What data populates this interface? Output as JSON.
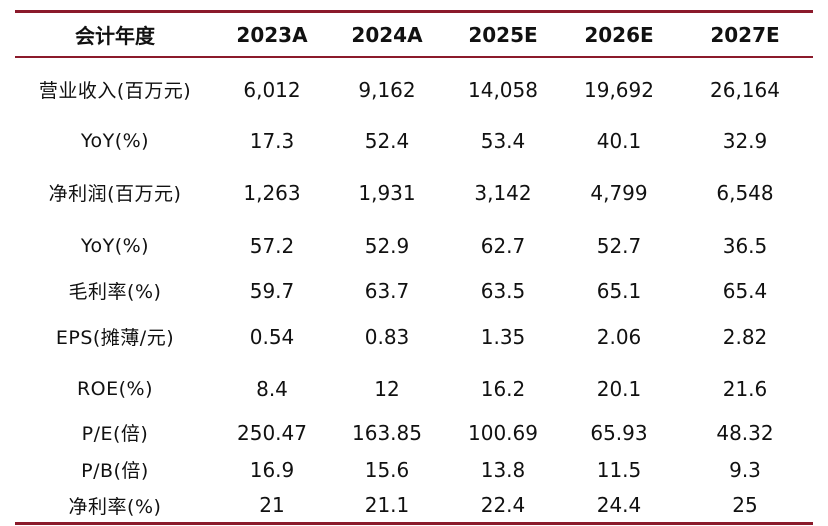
{
  "table": {
    "header": [
      "会计年度",
      "2023A",
      "2024A",
      "2025E",
      "2026E",
      "2027E"
    ],
    "rows": [
      [
        "营业收入(百万元)",
        "6,012",
        "9,162",
        "14,058",
        "19,692",
        "26,164"
      ],
      [
        "YoY(%)",
        "17.3",
        "52.4",
        "53.4",
        "40.1",
        "32.9"
      ],
      [
        "净利润(百万元)",
        "1,263",
        "1,931",
        "3,142",
        "4,799",
        "6,548"
      ],
      [
        "YoY(%)",
        "57.2",
        "52.9",
        "62.7",
        "52.7",
        "36.5"
      ],
      [
        "毛利率(%)",
        "59.7",
        "63.7",
        "63.5",
        "65.1",
        "65.4"
      ],
      [
        "EPS(摊薄/元)",
        "0.54",
        "0.83",
        "1.35",
        "2.06",
        "2.82"
      ],
      [
        "ROE(%)",
        "8.4",
        "12",
        "16.2",
        "20.1",
        "21.6"
      ],
      [
        "P/E(倍)",
        "250.47",
        "163.85",
        "100.69",
        "65.93",
        "48.32"
      ],
      [
        "P/B(倍)",
        "16.9",
        "15.6",
        "13.8",
        "11.5",
        "9.3"
      ],
      [
        "净利率(%)",
        "21",
        "21.1",
        "22.4",
        "24.4",
        "25"
      ]
    ]
  },
  "colors": {
    "rule": "#8b1a2b",
    "text": "#111111",
    "background": "#ffffff"
  }
}
